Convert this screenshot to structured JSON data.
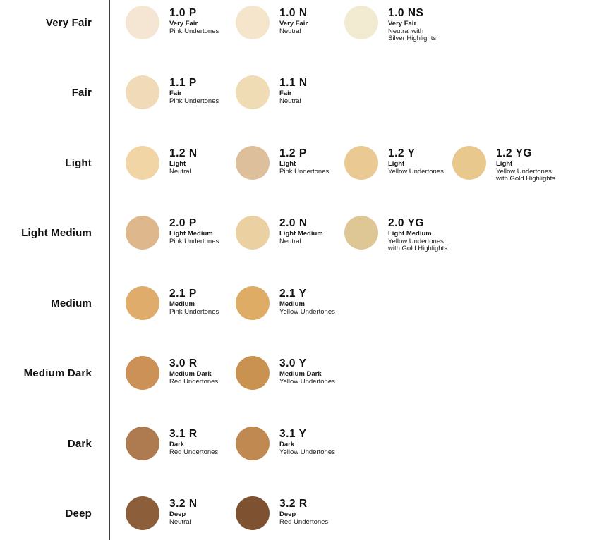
{
  "colors": {
    "background": "#FFFFFF",
    "divider": "#3D3D3D",
    "text": "#111111"
  },
  "chart_data": {
    "type": "table",
    "legend_position": "left",
    "row_labels": [
      "Very Fair",
      "Fair",
      "Light",
      "Light Medium",
      "Medium",
      "Medium Dark",
      "Dark",
      "Deep"
    ],
    "rows": [
      {
        "label": "Very Fair",
        "shades": [
          {
            "code": "1.0 P",
            "name": "Very Fair",
            "undertone": "Pink Undertones",
            "color": "#F5E6D4"
          },
          {
            "code": "1.0 N",
            "name": "Very Fair",
            "undertone": "Neutral",
            "color": "#F4E5CB"
          },
          {
            "code": "1.0 NS",
            "name": "Very Fair",
            "undertone": "Neutral with\nSilver Highlights",
            "color": "#F3EBD1"
          }
        ]
      },
      {
        "label": "Fair",
        "shades": [
          {
            "code": "1.1 P",
            "name": "Fair",
            "undertone": "Pink Undertones",
            "color": "#F1DAB8"
          },
          {
            "code": "1.1 N",
            "name": "Fair",
            "undertone": "Neutral",
            "color": "#EFDCB4"
          }
        ]
      },
      {
        "label": "Light",
        "shades": [
          {
            "code": "1.2 N",
            "name": "Light",
            "undertone": "Neutral",
            "color": "#F2D5A5"
          },
          {
            "code": "1.2 P",
            "name": "Light",
            "undertone": "Pink Undertones",
            "color": "#DEBF9B"
          },
          {
            "code": "1.2 Y",
            "name": "Light",
            "undertone": "Yellow Undertones",
            "color": "#EBC992"
          },
          {
            "code": "1.2 YG",
            "name": "Light",
            "undertone": "Yellow Undertones\nwith Gold Highlights",
            "color": "#E9C88E"
          }
        ]
      },
      {
        "label": "Light Medium",
        "shades": [
          {
            "code": "2.0 P",
            "name": "Light Medium",
            "undertone": "Pink Undertones",
            "color": "#DEB88C"
          },
          {
            "code": "2.0 N",
            "name": "Light Medium",
            "undertone": "Neutral",
            "color": "#EBD1A2"
          },
          {
            "code": "2.0 YG",
            "name": "Light Medium",
            "undertone": "Yellow Undertones\nwith Gold Highlights",
            "color": "#DEC695"
          }
        ]
      },
      {
        "label": "Medium",
        "shades": [
          {
            "code": "2.1 P",
            "name": "Medium",
            "undertone": "Pink Undertones",
            "color": "#DFAC6B"
          },
          {
            "code": "2.1 Y",
            "name": "Medium",
            "undertone": "Yellow Undertones",
            "color": "#DEAC64"
          }
        ]
      },
      {
        "label": "Medium Dark",
        "shades": [
          {
            "code": "3.0 R",
            "name": "Medium Dark",
            "undertone": "Red Undertones",
            "color": "#CB9156"
          },
          {
            "code": "3.0 Y",
            "name": "Medium Dark",
            "undertone": "Yellow Undertones",
            "color": "#C99251"
          }
        ]
      },
      {
        "label": "Dark",
        "shades": [
          {
            "code": "3.1 R",
            "name": "Dark",
            "undertone": "Red Undertones",
            "color": "#AE7A50"
          },
          {
            "code": "3.1 Y",
            "name": "Dark",
            "undertone": "Yellow Undertones",
            "color": "#C08951"
          }
        ]
      },
      {
        "label": "Deep",
        "shades": [
          {
            "code": "3.2 N",
            "name": "Deep",
            "undertone": "Neutral",
            "color": "#8C5E3A"
          },
          {
            "code": "3.2 R",
            "name": "Deep",
            "undertone": "Red Undertones",
            "color": "#7E5130"
          }
        ]
      }
    ]
  }
}
